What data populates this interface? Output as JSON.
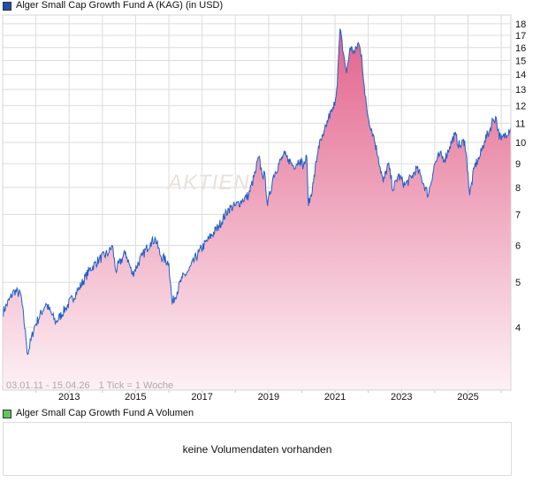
{
  "price_legend": {
    "label": "Alger Small Cap Growth Fund A (KAG) (in USD)",
    "color": "#1f4fb0"
  },
  "volume_legend": {
    "label": "Alger Small Cap Growth Fund A Volumen",
    "color": "#5cc85c"
  },
  "volume_message": "keine Volumendaten vorhanden",
  "watermark": "AKTIEN",
  "chart_data": {
    "type": "area",
    "title": "Alger Small Cap Growth Fund A (KAG) (in USD)",
    "range_label": "03.01.11 - 15.04.26",
    "tick_label": "1 Tick = 1 Woche",
    "x_range": [
      2011.0,
      2026.29
    ],
    "y_scale": "log",
    "ylim": [
      2.93,
      18.8
    ],
    "y_ticks": [
      4,
      5,
      6,
      7,
      8,
      9,
      10,
      11,
      12,
      13,
      14,
      15,
      16,
      17,
      18
    ],
    "x_ticks": [
      2013,
      2015,
      2017,
      2019,
      2021,
      2023,
      2025
    ],
    "grid": true,
    "line_color": "#1f5fc8",
    "fill_top_color": "#e2638c",
    "fill_bottom_color": "#fdf1f5",
    "series": [
      {
        "name": "Alger Small Cap Growth Fund A",
        "points": [
          [
            2011.0,
            4.3
          ],
          [
            2011.35,
            4.8
          ],
          [
            2011.55,
            4.7
          ],
          [
            2011.7,
            3.8
          ],
          [
            2011.75,
            3.5
          ],
          [
            2011.95,
            4.0
          ],
          [
            2012.3,
            4.5
          ],
          [
            2012.6,
            4.1
          ],
          [
            2012.9,
            4.4
          ],
          [
            2013.3,
            4.85
          ],
          [
            2013.6,
            5.3
          ],
          [
            2013.9,
            5.6
          ],
          [
            2014.2,
            5.8
          ],
          [
            2014.3,
            6.0
          ],
          [
            2014.4,
            5.3
          ],
          [
            2014.7,
            5.8
          ],
          [
            2014.9,
            5.2
          ],
          [
            2015.2,
            5.7
          ],
          [
            2015.45,
            6.1
          ],
          [
            2015.6,
            6.2
          ],
          [
            2015.75,
            5.7
          ],
          [
            2016.0,
            5.5
          ],
          [
            2016.1,
            4.5
          ],
          [
            2016.4,
            5.1
          ],
          [
            2016.6,
            5.3
          ],
          [
            2016.9,
            5.8
          ],
          [
            2017.2,
            6.2
          ],
          [
            2017.5,
            6.6
          ],
          [
            2017.8,
            7.2
          ],
          [
            2018.0,
            7.3
          ],
          [
            2018.2,
            7.5
          ],
          [
            2018.4,
            7.7
          ],
          [
            2018.6,
            8.6
          ],
          [
            2018.7,
            9.3
          ],
          [
            2018.8,
            8.6
          ],
          [
            2018.9,
            8.4
          ],
          [
            2018.97,
            7.3
          ],
          [
            2019.15,
            8.5
          ],
          [
            2019.45,
            9.4
          ],
          [
            2019.6,
            9.2
          ],
          [
            2019.75,
            8.9
          ],
          [
            2019.95,
            9.2
          ],
          [
            2020.05,
            8.9
          ],
          [
            2020.15,
            9.3
          ],
          [
            2020.2,
            7.3
          ],
          [
            2020.35,
            8.2
          ],
          [
            2020.5,
            9.8
          ],
          [
            2020.65,
            10.3
          ],
          [
            2020.8,
            11.3
          ],
          [
            2020.95,
            11.8
          ],
          [
            2021.05,
            13.0
          ],
          [
            2021.1,
            15.0
          ],
          [
            2021.15,
            17.5
          ],
          [
            2021.25,
            15.6
          ],
          [
            2021.35,
            14.1
          ],
          [
            2021.45,
            16.0
          ],
          [
            2021.6,
            15.6
          ],
          [
            2021.7,
            16.4
          ],
          [
            2021.8,
            15.4
          ],
          [
            2021.9,
            12.6
          ],
          [
            2022.0,
            11.3
          ],
          [
            2022.15,
            10.4
          ],
          [
            2022.3,
            9.3
          ],
          [
            2022.45,
            8.2
          ],
          [
            2022.6,
            9.0
          ],
          [
            2022.75,
            7.9
          ],
          [
            2022.9,
            8.5
          ],
          [
            2023.1,
            8.1
          ],
          [
            2023.3,
            8.4
          ],
          [
            2023.45,
            8.8
          ],
          [
            2023.6,
            8.4
          ],
          [
            2023.8,
            7.7
          ],
          [
            2024.0,
            9.0
          ],
          [
            2024.15,
            9.4
          ],
          [
            2024.3,
            9.2
          ],
          [
            2024.45,
            9.8
          ],
          [
            2024.6,
            10.4
          ],
          [
            2024.75,
            9.8
          ],
          [
            2024.9,
            10.1
          ],
          [
            2025.0,
            8.6
          ],
          [
            2025.05,
            7.7
          ],
          [
            2025.2,
            8.9
          ],
          [
            2025.35,
            9.3
          ],
          [
            2025.5,
            10.1
          ],
          [
            2025.65,
            10.6
          ],
          [
            2025.75,
            11.2
          ],
          [
            2025.85,
            11.3
          ],
          [
            2025.9,
            10.6
          ],
          [
            2026.0,
            10.1
          ],
          [
            2026.29,
            10.8
          ]
        ]
      }
    ]
  },
  "volume_chart": {
    "message": "keine Volumendaten vorhanden"
  }
}
